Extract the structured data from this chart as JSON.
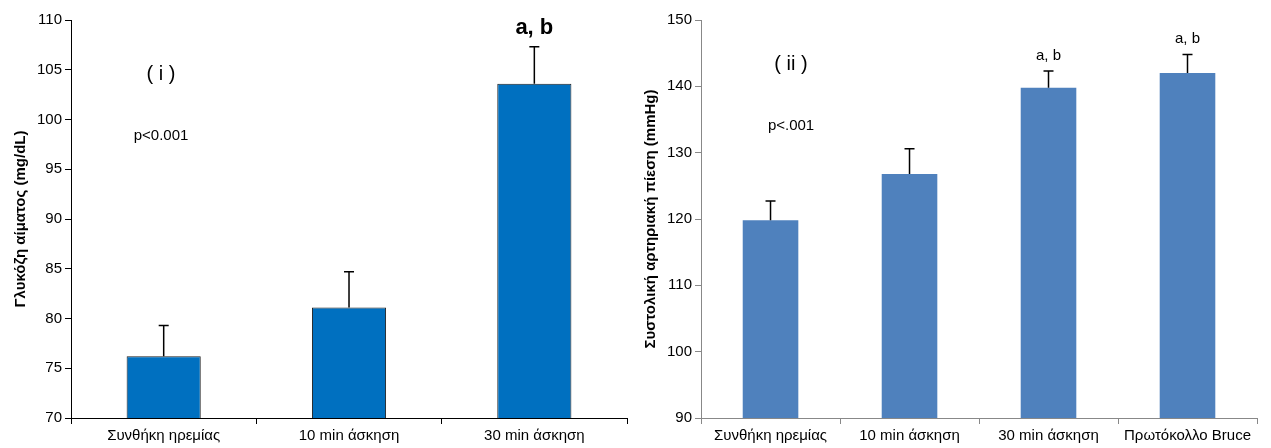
{
  "chart_data": [
    {
      "type": "bar",
      "ylabel": "Γλυκόζη αίματος (mg/dL)",
      "categories": [
        "Συνθήκη ηρεμίας",
        "10 min άσκηση",
        "30 min άσκηση"
      ],
      "values": [
        76.2,
        81.1,
        103.6
      ],
      "color": "#0070c0",
      "errors": [
        [
          76.2,
          79.3
        ],
        [
          81.1,
          84.7
        ],
        [
          103.6,
          107.3
        ]
      ],
      "ylim": [
        70,
        110
      ],
      "yticks": [
        70,
        75,
        80,
        85,
        90,
        95,
        100,
        105,
        110
      ],
      "grid": false,
      "annotations": [
        "( i )",
        "p<0.001",
        "a, b"
      ]
    },
    {
      "type": "bar",
      "ylabel": "Συστολική αρτηριακή πίεση (mmHg)",
      "categories": [
        "Συνθήκη ηρεμίας",
        "10 min άσκηση",
        "30 min άσκηση",
        "Πρωτόκολλο Bruce"
      ],
      "values": [
        119.8,
        126.8,
        139.8,
        142.0
      ],
      "color": "#4f81bd",
      "errors": [
        [
          119.8,
          122.7
        ],
        [
          126.8,
          130.6
        ],
        [
          139.8,
          142.3
        ],
        [
          142.0,
          144.8
        ]
      ],
      "ylim": [
        90,
        150
      ],
      "yticks": [
        90,
        100,
        110,
        120,
        130,
        140,
        150
      ],
      "grid": false,
      "annotations": [
        "( ii )",
        "p<.001",
        "a, b",
        "a, b"
      ]
    }
  ]
}
